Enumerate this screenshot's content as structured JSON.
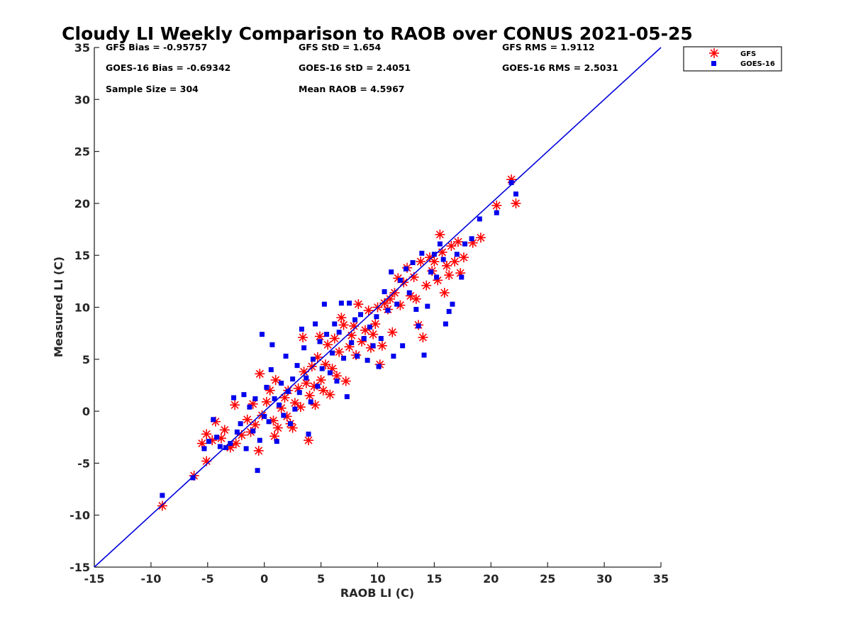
{
  "chart_data": {
    "type": "scatter",
    "title": "Cloudy LI Weekly Comparison to RAOB over CONUS 2021-05-25",
    "xlabel": "RAOB LI (C)",
    "ylabel": "Measured LI (C)",
    "xlim": [
      -15,
      35
    ],
    "ylim": [
      -15,
      35
    ],
    "xticks": [
      -15,
      -10,
      -5,
      0,
      5,
      10,
      15,
      20,
      25,
      30,
      35
    ],
    "yticks": [
      -15,
      -10,
      -5,
      0,
      5,
      10,
      15,
      20,
      25,
      30,
      35
    ],
    "grid": false,
    "legend_position": "outside top-right",
    "reference_line": {
      "x": [
        -15,
        35
      ],
      "y": [
        -15,
        35
      ],
      "color": "#0000dd"
    },
    "stats": {
      "gfs_bias": "GFS Bias = -0.95757",
      "goes_bias": "GOES-16 Bias = -0.69342",
      "sample_size": "Sample Size = 304",
      "gfs_std": "GFS StD = 1.654",
      "goes_std": "GOES-16 StD = 2.4051",
      "mean_raob": "Mean RAOB = 4.5967",
      "gfs_rms": "GFS RMS = 1.9112",
      "goes_rms": "GOES-16 RMS = 2.5031"
    },
    "series": [
      {
        "name": "GFS",
        "marker": "asterisk",
        "color": "#ff0000",
        "points": [
          [
            -9.0,
            -9.1
          ],
          [
            -6.2,
            -6.2
          ],
          [
            -5.1,
            -4.8
          ],
          [
            -5.5,
            -3.1
          ],
          [
            -5.1,
            -2.2
          ],
          [
            -4.6,
            -2.8
          ],
          [
            -4.3,
            -1.0
          ],
          [
            -3.8,
            -2.6
          ],
          [
            -3.5,
            -1.8
          ],
          [
            -3.0,
            -3.5
          ],
          [
            -2.6,
            0.6
          ],
          [
            -2.5,
            -3.1
          ],
          [
            -2.0,
            -2.3
          ],
          [
            -1.5,
            -0.8
          ],
          [
            -1.2,
            -2.0
          ],
          [
            -1.0,
            0.7
          ],
          [
            -0.8,
            -1.3
          ],
          [
            -0.5,
            -3.8
          ],
          [
            -0.4,
            3.6
          ],
          [
            -0.2,
            -0.4
          ],
          [
            0.2,
            0.9
          ],
          [
            0.5,
            2.0
          ],
          [
            0.8,
            -0.9
          ],
          [
            0.9,
            -2.4
          ],
          [
            1.0,
            3.0
          ],
          [
            1.2,
            -1.6
          ],
          [
            1.5,
            0.3
          ],
          [
            1.8,
            1.3
          ],
          [
            2.0,
            -0.5
          ],
          [
            2.1,
            2.0
          ],
          [
            2.3,
            -1.2
          ],
          [
            2.5,
            -1.6
          ],
          [
            2.7,
            0.8
          ],
          [
            3.0,
            2.2
          ],
          [
            3.2,
            0.4
          ],
          [
            3.4,
            7.1
          ],
          [
            3.5,
            3.8
          ],
          [
            3.7,
            2.7
          ],
          [
            3.9,
            -2.8
          ],
          [
            4.0,
            1.5
          ],
          [
            4.2,
            4.3
          ],
          [
            4.4,
            2.4
          ],
          [
            4.5,
            0.6
          ],
          [
            4.7,
            5.2
          ],
          [
            4.9,
            7.2
          ],
          [
            5.0,
            3.0
          ],
          [
            5.2,
            2.0
          ],
          [
            5.4,
            4.5
          ],
          [
            5.6,
            6.4
          ],
          [
            5.8,
            1.6
          ],
          [
            6.0,
            4.1
          ],
          [
            6.2,
            7.0
          ],
          [
            6.4,
            3.4
          ],
          [
            6.6,
            5.7
          ],
          [
            6.8,
            9.0
          ],
          [
            7.0,
            8.3
          ],
          [
            7.2,
            2.9
          ],
          [
            7.5,
            6.2
          ],
          [
            7.7,
            7.3
          ],
          [
            7.9,
            8.2
          ],
          [
            8.1,
            5.4
          ],
          [
            8.3,
            10.3
          ],
          [
            8.6,
            6.7
          ],
          [
            8.9,
            7.8
          ],
          [
            9.2,
            9.7
          ],
          [
            9.4,
            6.1
          ],
          [
            9.6,
            7.4
          ],
          [
            9.8,
            8.4
          ],
          [
            10.0,
            10.0
          ],
          [
            10.2,
            4.5
          ],
          [
            10.4,
            6.3
          ],
          [
            10.6,
            10.4
          ],
          [
            10.9,
            9.8
          ],
          [
            11.1,
            10.8
          ],
          [
            11.3,
            7.6
          ],
          [
            11.5,
            11.4
          ],
          [
            11.8,
            12.8
          ],
          [
            12.0,
            10.2
          ],
          [
            12.3,
            12.4
          ],
          [
            12.6,
            13.8
          ],
          [
            12.9,
            11.1
          ],
          [
            13.2,
            12.9
          ],
          [
            13.4,
            10.8
          ],
          [
            13.6,
            8.3
          ],
          [
            13.8,
            14.4
          ],
          [
            14.0,
            7.1
          ],
          [
            14.3,
            12.1
          ],
          [
            14.6,
            14.8
          ],
          [
            14.8,
            13.5
          ],
          [
            15.0,
            14.4
          ],
          [
            15.3,
            12.6
          ],
          [
            15.5,
            17.0
          ],
          [
            15.7,
            15.3
          ],
          [
            15.9,
            11.4
          ],
          [
            16.1,
            14.0
          ],
          [
            16.3,
            13.1
          ],
          [
            16.5,
            15.9
          ],
          [
            16.8,
            14.4
          ],
          [
            17.1,
            16.3
          ],
          [
            17.3,
            13.3
          ],
          [
            17.6,
            14.8
          ],
          [
            18.4,
            16.2
          ],
          [
            19.1,
            16.7
          ],
          [
            20.5,
            19.8
          ],
          [
            21.8,
            22.3
          ],
          [
            22.2,
            20.0
          ]
        ]
      },
      {
        "name": "GOES-16",
        "marker": "square",
        "color": "#0000ee",
        "points": [
          [
            -9.0,
            -8.1
          ],
          [
            -6.3,
            -6.4
          ],
          [
            -5.3,
            -3.6
          ],
          [
            -4.9,
            -2.9
          ],
          [
            -4.5,
            -0.8
          ],
          [
            -4.2,
            -2.5
          ],
          [
            -3.9,
            -3.4
          ],
          [
            -3.4,
            -3.5
          ],
          [
            -3.0,
            -3.1
          ],
          [
            -2.7,
            1.3
          ],
          [
            -2.4,
            -2.0
          ],
          [
            -2.1,
            -1.2
          ],
          [
            -1.8,
            1.6
          ],
          [
            -1.6,
            -3.6
          ],
          [
            -1.3,
            0.4
          ],
          [
            -1.0,
            -1.9
          ],
          [
            -0.8,
            1.2
          ],
          [
            -0.6,
            -5.7
          ],
          [
            -0.4,
            -2.8
          ],
          [
            -0.2,
            7.4
          ],
          [
            0.0,
            -0.5
          ],
          [
            0.2,
            2.3
          ],
          [
            0.4,
            -1.0
          ],
          [
            0.6,
            4.0
          ],
          [
            0.7,
            6.4
          ],
          [
            0.9,
            1.2
          ],
          [
            1.1,
            -2.9
          ],
          [
            1.3,
            0.6
          ],
          [
            1.5,
            2.7
          ],
          [
            1.7,
            -0.4
          ],
          [
            1.9,
            5.3
          ],
          [
            2.1,
            1.9
          ],
          [
            2.3,
            -1.2
          ],
          [
            2.5,
            3.1
          ],
          [
            2.7,
            0.2
          ],
          [
            2.9,
            4.4
          ],
          [
            3.1,
            1.8
          ],
          [
            3.3,
            7.9
          ],
          [
            3.5,
            6.1
          ],
          [
            3.7,
            3.2
          ],
          [
            3.9,
            -2.2
          ],
          [
            4.1,
            0.9
          ],
          [
            4.3,
            5.0
          ],
          [
            4.5,
            8.4
          ],
          [
            4.7,
            2.4
          ],
          [
            4.9,
            6.7
          ],
          [
            5.1,
            4.1
          ],
          [
            5.3,
            10.3
          ],
          [
            5.5,
            7.4
          ],
          [
            5.8,
            3.7
          ],
          [
            6.0,
            5.6
          ],
          [
            6.2,
            8.4
          ],
          [
            6.4,
            2.9
          ],
          [
            6.6,
            7.6
          ],
          [
            6.8,
            10.4
          ],
          [
            7.0,
            5.1
          ],
          [
            7.3,
            1.4
          ],
          [
            7.5,
            10.4
          ],
          [
            7.7,
            6.6
          ],
          [
            8.0,
            8.8
          ],
          [
            8.2,
            5.3
          ],
          [
            8.5,
            9.3
          ],
          [
            8.8,
            7.0
          ],
          [
            9.1,
            4.9
          ],
          [
            9.3,
            8.1
          ],
          [
            9.6,
            6.3
          ],
          [
            9.9,
            9.1
          ],
          [
            10.1,
            4.3
          ],
          [
            10.3,
            7.0
          ],
          [
            10.6,
            11.5
          ],
          [
            10.9,
            9.7
          ],
          [
            11.2,
            13.4
          ],
          [
            11.4,
            5.3
          ],
          [
            11.7,
            10.3
          ],
          [
            12.0,
            12.6
          ],
          [
            12.2,
            6.3
          ],
          [
            12.5,
            13.7
          ],
          [
            12.8,
            11.4
          ],
          [
            13.1,
            14.3
          ],
          [
            13.4,
            9.8
          ],
          [
            13.6,
            8.2
          ],
          [
            13.9,
            15.2
          ],
          [
            14.1,
            5.4
          ],
          [
            14.4,
            10.1
          ],
          [
            14.7,
            13.4
          ],
          [
            15.0,
            15.1
          ],
          [
            15.2,
            12.9
          ],
          [
            15.5,
            16.1
          ],
          [
            15.8,
            14.6
          ],
          [
            16.0,
            8.4
          ],
          [
            16.3,
            9.6
          ],
          [
            16.6,
            10.3
          ],
          [
            17.0,
            15.1
          ],
          [
            17.4,
            12.9
          ],
          [
            17.7,
            16.1
          ],
          [
            18.3,
            16.6
          ],
          [
            19.0,
            18.5
          ],
          [
            20.5,
            19.1
          ],
          [
            21.8,
            22.0
          ],
          [
            22.2,
            20.9
          ]
        ]
      }
    ]
  }
}
